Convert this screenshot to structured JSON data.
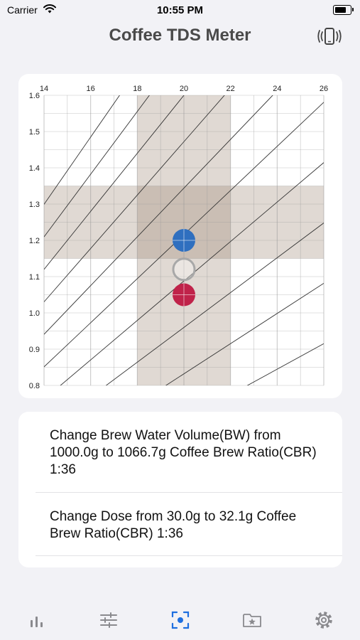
{
  "status_bar": {
    "carrier": "Carrier",
    "time": "10:55 PM",
    "battery_level": 0.85
  },
  "nav": {
    "title": "Coffee TDS Meter",
    "action_icon": "vibrate-phone-icon"
  },
  "chart_data": {
    "type": "scatter",
    "x_ticks": [
      "14",
      "16",
      "18",
      "20",
      "22",
      "24",
      "26"
    ],
    "y_ticks": [
      "1.6",
      "1.5",
      "1.4",
      "1.3",
      "1.2",
      "1.1",
      "1.0",
      "0.9",
      "0.8"
    ],
    "xlim": [
      14,
      26
    ],
    "ylim": [
      0.8,
      1.6
    ],
    "grid": true,
    "ideal_x_range": [
      18,
      22
    ],
    "ideal_y_range": [
      1.15,
      1.35
    ],
    "series": [
      {
        "points": [
          {
            "x": 20,
            "y": 1.2
          }
        ],
        "color": "#2f6fbf",
        "style": "filled"
      },
      {
        "points": [
          {
            "x": 20,
            "y": 1.12
          }
        ],
        "color": "#a8a8a8",
        "style": "outline"
      },
      {
        "points": [
          {
            "x": 20,
            "y": 1.05
          }
        ],
        "color": "#c0234a",
        "style": "filled"
      }
    ]
  },
  "suggestions": [
    {
      "text": "Change Brew Water Volume(BW) from 1000.0g to 1066.7g Coffee Brew Ratio(CBR) 1:36"
    },
    {
      "text": "Change Dose from 30.0g to 32.1g Coffee Brew Ratio(CBR) 1:36"
    }
  ],
  "tab_bar": {
    "active_color": "#1e6fe0",
    "inactive_color": "#8a8a8e",
    "tabs": [
      {
        "icon": "bar-chart-icon",
        "active": false
      },
      {
        "icon": "sliders-icon",
        "active": false
      },
      {
        "icon": "scan-focus-icon",
        "active": true
      },
      {
        "icon": "star-folder-icon",
        "active": false
      },
      {
        "icon": "gear-icon",
        "active": false
      }
    ]
  }
}
